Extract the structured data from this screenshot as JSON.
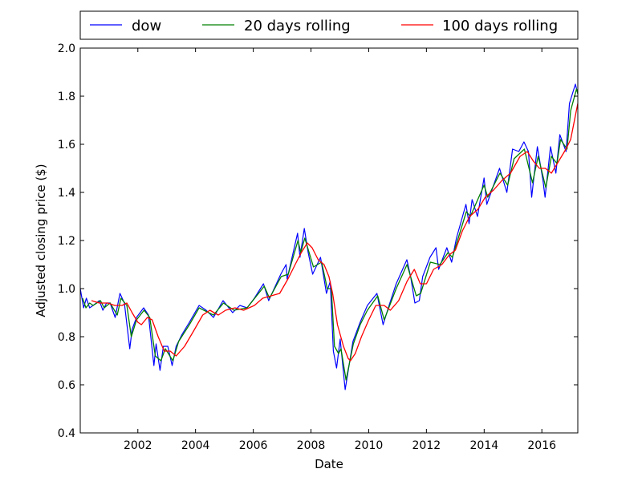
{
  "chart_data": {
    "type": "line",
    "title": "",
    "xlabel": "Date",
    "ylabel": "Adjusted closing price ($)",
    "xlim": [
      "2000-01-03",
      "2017-03-31"
    ],
    "ylim": [
      0.4,
      2.0
    ],
    "xticks": [
      "2002",
      "2004",
      "2006",
      "2008",
      "2010",
      "2012",
      "2014",
      "2016"
    ],
    "yticks": [
      "0.4",
      "0.6",
      "0.8",
      "1.0",
      "1.2",
      "1.4",
      "1.6",
      "1.8",
      "2.0"
    ],
    "grid": false,
    "legend_position": "top, above plot, 3 columns",
    "series": [
      {
        "name": "dow",
        "color": "#0000ff",
        "points": [
          [
            "2000-01-03",
            1.0
          ],
          [
            "2000-02-15",
            0.92
          ],
          [
            "2000-03-20",
            0.96
          ],
          [
            "2000-05-01",
            0.92
          ],
          [
            "2000-06-15",
            0.93
          ],
          [
            "2000-09-01",
            0.95
          ],
          [
            "2000-10-15",
            0.91
          ],
          [
            "2000-12-01",
            0.94
          ],
          [
            "2001-01-15",
            0.94
          ],
          [
            "2001-03-20",
            0.88
          ],
          [
            "2001-05-20",
            0.98
          ],
          [
            "2001-07-15",
            0.94
          ],
          [
            "2001-09-21",
            0.75
          ],
          [
            "2001-10-20",
            0.83
          ],
          [
            "2001-12-15",
            0.88
          ],
          [
            "2002-03-15",
            0.92
          ],
          [
            "2002-05-15",
            0.89
          ],
          [
            "2002-07-23",
            0.68
          ],
          [
            "2002-08-20",
            0.77
          ],
          [
            "2002-10-09",
            0.66
          ],
          [
            "2002-11-20",
            0.76
          ],
          [
            "2003-01-15",
            0.76
          ],
          [
            "2003-03-11",
            0.68
          ],
          [
            "2003-05-01",
            0.76
          ],
          [
            "2003-07-15",
            0.81
          ],
          [
            "2003-10-15",
            0.86
          ],
          [
            "2004-02-15",
            0.93
          ],
          [
            "2004-05-15",
            0.91
          ],
          [
            "2004-08-15",
            0.88
          ],
          [
            "2004-12-15",
            0.95
          ],
          [
            "2005-04-15",
            0.9
          ],
          [
            "2005-07-15",
            0.93
          ],
          [
            "2005-10-15",
            0.92
          ],
          [
            "2006-01-15",
            0.96
          ],
          [
            "2006-05-10",
            1.02
          ],
          [
            "2006-07-15",
            0.95
          ],
          [
            "2006-12-15",
            1.06
          ],
          [
            "2007-02-20",
            1.1
          ],
          [
            "2007-03-05",
            1.04
          ],
          [
            "2007-07-15",
            1.23
          ],
          [
            "2007-08-15",
            1.13
          ],
          [
            "2007-10-09",
            1.25
          ],
          [
            "2007-11-26",
            1.15
          ],
          [
            "2008-01-22",
            1.06
          ],
          [
            "2008-05-01",
            1.13
          ],
          [
            "2008-07-15",
            0.98
          ],
          [
            "2008-09-01",
            1.03
          ],
          [
            "2008-10-10",
            0.74
          ],
          [
            "2008-11-20",
            0.67
          ],
          [
            "2009-01-05",
            0.79
          ],
          [
            "2009-03-09",
            0.58
          ],
          [
            "2009-06-15",
            0.78
          ],
          [
            "2009-09-15",
            0.86
          ],
          [
            "2009-12-15",
            0.93
          ],
          [
            "2010-04-15",
            0.98
          ],
          [
            "2010-07-02",
            0.85
          ],
          [
            "2010-09-15",
            0.93
          ],
          [
            "2010-12-15",
            1.02
          ],
          [
            "2011-04-29",
            1.12
          ],
          [
            "2011-06-15",
            1.05
          ],
          [
            "2011-08-08",
            0.94
          ],
          [
            "2011-10-03",
            0.95
          ],
          [
            "2011-11-15",
            1.05
          ],
          [
            "2012-02-15",
            1.13
          ],
          [
            "2012-05-01",
            1.17
          ],
          [
            "2012-06-04",
            1.08
          ],
          [
            "2012-09-15",
            1.17
          ],
          [
            "2012-11-15",
            1.11
          ],
          [
            "2013-01-15",
            1.21
          ],
          [
            "2013-05-15",
            1.35
          ],
          [
            "2013-06-24",
            1.27
          ],
          [
            "2013-08-01",
            1.37
          ],
          [
            "2013-10-08",
            1.3
          ],
          [
            "2013-12-31",
            1.46
          ],
          [
            "2014-02-03",
            1.35
          ],
          [
            "2014-07-15",
            1.5
          ],
          [
            "2014-10-15",
            1.4
          ],
          [
            "2014-12-26",
            1.58
          ],
          [
            "2015-03-15",
            1.57
          ],
          [
            "2015-05-19",
            1.61
          ],
          [
            "2015-07-15",
            1.57
          ],
          [
            "2015-08-25",
            1.38
          ],
          [
            "2015-11-05",
            1.59
          ],
          [
            "2016-01-15",
            1.45
          ],
          [
            "2016-02-11",
            1.38
          ],
          [
            "2016-04-20",
            1.59
          ],
          [
            "2016-06-27",
            1.48
          ],
          [
            "2016-08-15",
            1.64
          ],
          [
            "2016-11-03",
            1.57
          ],
          [
            "2016-12-15",
            1.77
          ],
          [
            "2017-03-01",
            1.85
          ],
          [
            "2017-03-31",
            1.81
          ]
        ]
      },
      {
        "name": "20 days rolling",
        "color": "#008000",
        "points": [
          [
            "2000-02-01",
            0.96
          ],
          [
            "2000-03-15",
            0.92
          ],
          [
            "2000-05-01",
            0.94
          ],
          [
            "2000-06-15",
            0.93
          ],
          [
            "2000-09-15",
            0.95
          ],
          [
            "2000-11-01",
            0.92
          ],
          [
            "2001-01-15",
            0.94
          ],
          [
            "2001-04-15",
            0.89
          ],
          [
            "2001-06-01",
            0.96
          ],
          [
            "2001-08-15",
            0.93
          ],
          [
            "2001-10-10",
            0.8
          ],
          [
            "2001-12-15",
            0.87
          ],
          [
            "2002-03-20",
            0.91
          ],
          [
            "2002-06-01",
            0.88
          ],
          [
            "2002-08-10",
            0.72
          ],
          [
            "2002-10-20",
            0.7
          ],
          [
            "2002-12-15",
            0.75
          ],
          [
            "2003-03-20",
            0.7
          ],
          [
            "2003-06-01",
            0.78
          ],
          [
            "2003-10-15",
            0.85
          ],
          [
            "2004-02-15",
            0.92
          ],
          [
            "2004-08-15",
            0.89
          ],
          [
            "2004-12-20",
            0.94
          ],
          [
            "2005-05-01",
            0.91
          ],
          [
            "2005-10-15",
            0.92
          ],
          [
            "2006-05-20",
            1.01
          ],
          [
            "2006-07-25",
            0.96
          ],
          [
            "2006-12-20",
            1.05
          ],
          [
            "2007-03-20",
            1.06
          ],
          [
            "2007-07-20",
            1.2
          ],
          [
            "2007-08-25",
            1.15
          ],
          [
            "2007-10-15",
            1.21
          ],
          [
            "2008-02-01",
            1.09
          ],
          [
            "2008-05-15",
            1.11
          ],
          [
            "2008-07-25",
            1.0
          ],
          [
            "2008-09-15",
            1.0
          ],
          [
            "2008-10-25",
            0.76
          ],
          [
            "2008-12-15",
            0.73
          ],
          [
            "2009-01-15",
            0.75
          ],
          [
            "2009-03-20",
            0.62
          ],
          [
            "2009-06-20",
            0.77
          ],
          [
            "2009-09-15",
            0.85
          ],
          [
            "2009-12-15",
            0.91
          ],
          [
            "2010-04-25",
            0.97
          ],
          [
            "2010-07-15",
            0.87
          ],
          [
            "2010-12-15",
            1.0
          ],
          [
            "2011-05-01",
            1.1
          ],
          [
            "2011-08-25",
            0.97
          ],
          [
            "2011-10-20",
            0.98
          ],
          [
            "2012-02-20",
            1.11
          ],
          [
            "2012-06-20",
            1.1
          ],
          [
            "2012-10-01",
            1.15
          ],
          [
            "2012-11-25",
            1.13
          ],
          [
            "2013-05-20",
            1.32
          ],
          [
            "2013-07-10",
            1.3
          ],
          [
            "2013-12-31",
            1.43
          ],
          [
            "2014-02-15",
            1.38
          ],
          [
            "2014-07-20",
            1.48
          ],
          [
            "2014-10-25",
            1.43
          ],
          [
            "2015-01-15",
            1.54
          ],
          [
            "2015-05-25",
            1.58
          ],
          [
            "2015-09-05",
            1.44
          ],
          [
            "2015-11-15",
            1.55
          ],
          [
            "2016-02-20",
            1.42
          ],
          [
            "2016-05-01",
            1.55
          ],
          [
            "2016-07-10",
            1.52
          ],
          [
            "2016-08-25",
            1.62
          ],
          [
            "2016-11-15",
            1.58
          ],
          [
            "2016-12-31",
            1.74
          ],
          [
            "2017-03-15",
            1.83
          ],
          [
            "2017-03-31",
            1.81
          ]
        ]
      },
      {
        "name": "100 days rolling",
        "color": "#ff0000",
        "points": [
          [
            "2000-05-24",
            0.95
          ],
          [
            "2000-09-01",
            0.94
          ],
          [
            "2000-12-15",
            0.94
          ],
          [
            "2001-03-15",
            0.93
          ],
          [
            "2001-06-15",
            0.93
          ],
          [
            "2001-08-15",
            0.94
          ],
          [
            "2001-10-20",
            0.9
          ],
          [
            "2002-01-01",
            0.86
          ],
          [
            "2002-02-15",
            0.85
          ],
          [
            "2002-05-01",
            0.88
          ],
          [
            "2002-07-01",
            0.87
          ],
          [
            "2002-09-15",
            0.8
          ],
          [
            "2002-12-01",
            0.74
          ],
          [
            "2003-02-15",
            0.74
          ],
          [
            "2003-05-01",
            0.72
          ],
          [
            "2003-08-15",
            0.76
          ],
          [
            "2003-12-01",
            0.82
          ],
          [
            "2004-04-01",
            0.89
          ],
          [
            "2004-07-01",
            0.91
          ],
          [
            "2004-10-15",
            0.89
          ],
          [
            "2005-01-15",
            0.91
          ],
          [
            "2005-05-15",
            0.92
          ],
          [
            "2005-09-01",
            0.91
          ],
          [
            "2006-01-15",
            0.93
          ],
          [
            "2006-05-01",
            0.96
          ],
          [
            "2006-08-15",
            0.97
          ],
          [
            "2006-12-01",
            0.98
          ],
          [
            "2007-03-15",
            1.04
          ],
          [
            "2007-06-15",
            1.1
          ],
          [
            "2007-09-01",
            1.15
          ],
          [
            "2007-11-15",
            1.19
          ],
          [
            "2008-01-15",
            1.17
          ],
          [
            "2008-04-01",
            1.12
          ],
          [
            "2008-06-15",
            1.1
          ],
          [
            "2008-08-15",
            1.05
          ],
          [
            "2008-10-01",
            0.98
          ],
          [
            "2008-12-01",
            0.85
          ],
          [
            "2009-02-15",
            0.76
          ],
          [
            "2009-04-15",
            0.71
          ],
          [
            "2009-05-15",
            0.7
          ],
          [
            "2009-07-15",
            0.73
          ],
          [
            "2009-10-01",
            0.8
          ],
          [
            "2010-01-01",
            0.87
          ],
          [
            "2010-04-01",
            0.93
          ],
          [
            "2010-07-15",
            0.93
          ],
          [
            "2010-10-01",
            0.91
          ],
          [
            "2011-01-15",
            0.95
          ],
          [
            "2011-05-01",
            1.03
          ],
          [
            "2011-08-01",
            1.08
          ],
          [
            "2011-10-15",
            1.02
          ],
          [
            "2012-01-01",
            1.02
          ],
          [
            "2012-04-01",
            1.08
          ],
          [
            "2012-07-15",
            1.1
          ],
          [
            "2012-10-15",
            1.14
          ],
          [
            "2013-01-01",
            1.16
          ],
          [
            "2013-04-01",
            1.24
          ],
          [
            "2013-07-01",
            1.3
          ],
          [
            "2013-10-15",
            1.33
          ],
          [
            "2014-01-15",
            1.38
          ],
          [
            "2014-05-01",
            1.41
          ],
          [
            "2014-08-15",
            1.45
          ],
          [
            "2014-12-01",
            1.48
          ],
          [
            "2015-04-01",
            1.55
          ],
          [
            "2015-07-01",
            1.57
          ],
          [
            "2015-09-15",
            1.53
          ],
          [
            "2015-12-01",
            1.5
          ],
          [
            "2016-02-15",
            1.5
          ],
          [
            "2016-05-01",
            1.48
          ],
          [
            "2016-08-01",
            1.53
          ],
          [
            "2016-11-01",
            1.58
          ],
          [
            "2016-12-31",
            1.62
          ],
          [
            "2017-03-31",
            1.77
          ]
        ]
      }
    ]
  }
}
